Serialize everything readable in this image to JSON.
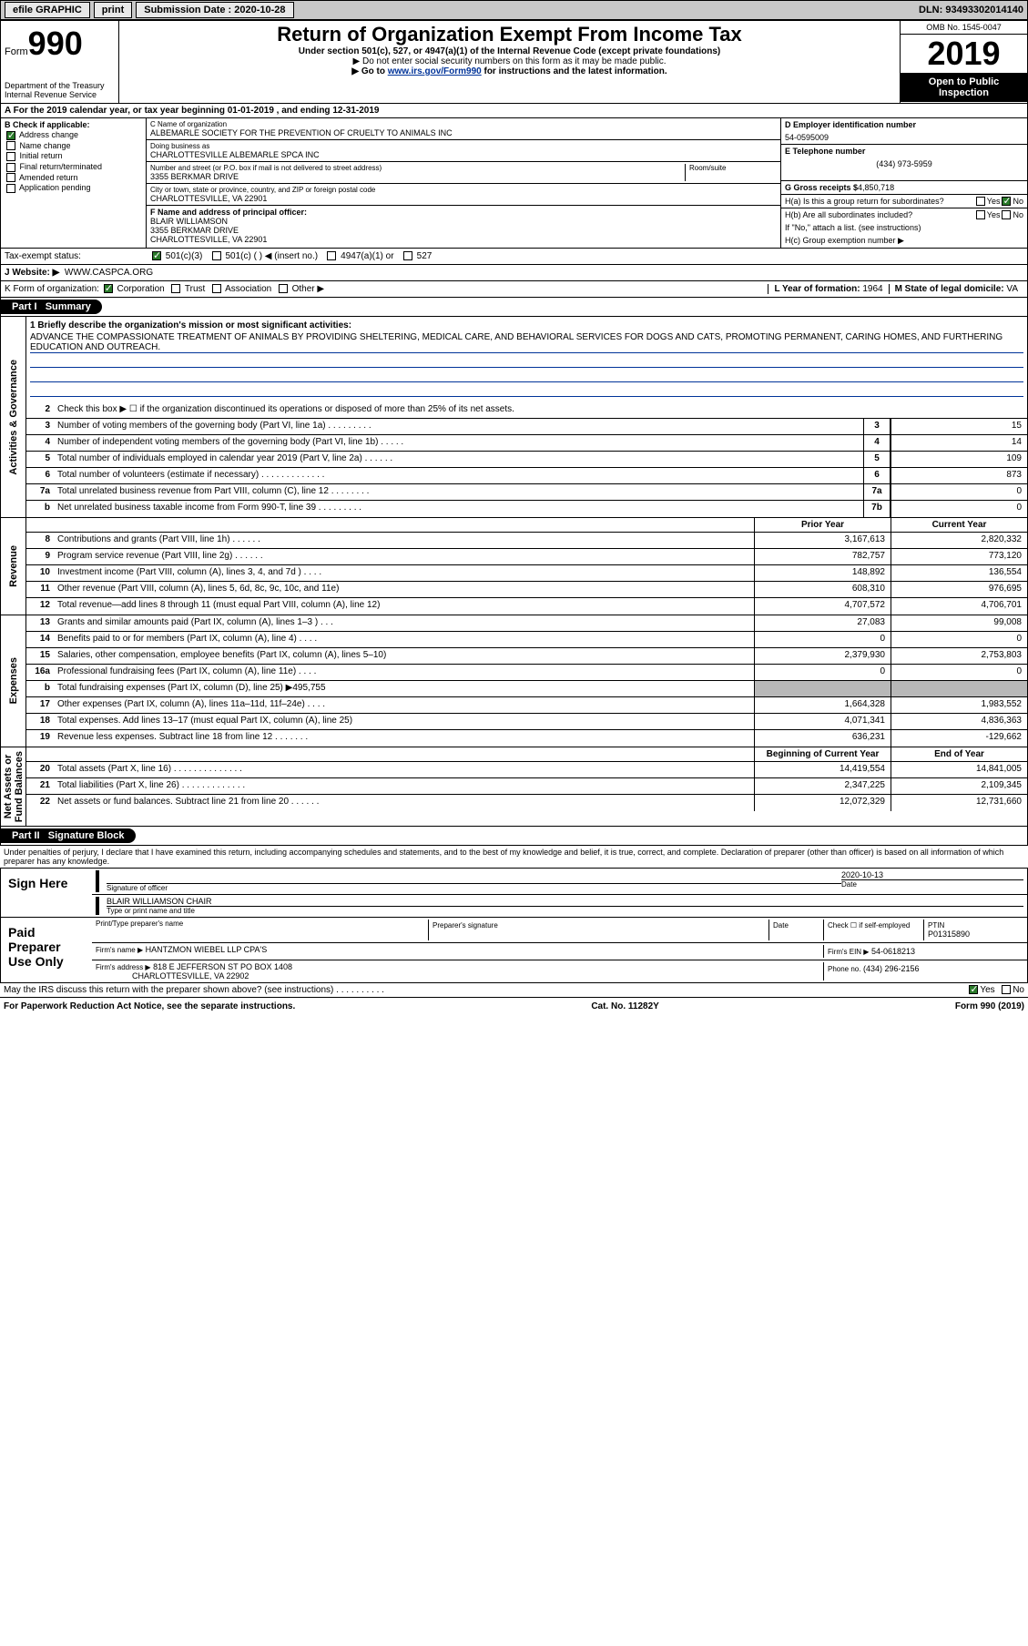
{
  "topbar": {
    "efile": "efile GRAPHIC",
    "print": "print",
    "sub_label": "Submission Date : 2020-10-28",
    "dln": "DLN: 93493302014140"
  },
  "header": {
    "form_word": "Form",
    "form_num": "990",
    "dept": "Department of the Treasury\nInternal Revenue Service",
    "title": "Return of Organization Exempt From Income Tax",
    "sub1": "Under section 501(c), 527, or 4947(a)(1) of the Internal Revenue Code (except private foundations)",
    "sub2": "▶ Do not enter social security numbers on this form as it may be made public.",
    "sub3a": "▶ Go to ",
    "sub3link": "www.irs.gov/Form990",
    "sub3b": " for instructions and the latest information.",
    "omb": "OMB No. 1545-0047",
    "year": "2019",
    "open": "Open to Public Inspection"
  },
  "period": "A For the 2019 calendar year, or tax year beginning 01-01-2019    , and ending 12-31-2019",
  "colB": {
    "label": "B Check if applicable:",
    "items": [
      "Address change",
      "Name change",
      "Initial return",
      "Final return/terminated",
      "Amended return",
      "Application pending"
    ],
    "checked": [
      true,
      false,
      false,
      false,
      false,
      false
    ]
  },
  "colC": {
    "name_label": "C Name of organization",
    "name": "ALBEMARLE SOCIETY FOR THE PREVENTION OF CRUELTY TO ANIMALS INC",
    "dba_label": "Doing business as",
    "dba": "CHARLOTTESVILLE ALBEMARLE SPCA INC",
    "addr_label": "Number and street (or P.O. box if mail is not delivered to street address)",
    "room_label": "Room/suite",
    "addr": "3355 BERKMAR DRIVE",
    "city_label": "City or town, state or province, country, and ZIP or foreign postal code",
    "city": "CHARLOTTESVILLE, VA  22901",
    "officer_label": "F Name and address of principal officer:",
    "officer_name": "BLAIR WILLIAMSON",
    "officer_addr1": "3355 BERKMAR DRIVE",
    "officer_addr2": "CHARLOTTESVILLE, VA  22901"
  },
  "colD": {
    "ein_label": "D Employer identification number",
    "ein": "54-0595009",
    "tel_label": "E Telephone number",
    "tel": "(434) 973-5959",
    "gross_label": "G Gross receipts $",
    "gross": "4,850,718",
    "ha": "H(a)  Is this a group return for subordinates?",
    "hb": "H(b)  Are all subordinates included?",
    "hb_note": "If \"No,\" attach a list. (see instructions)",
    "hc": "H(c)  Group exemption number ▶",
    "yes": "Yes",
    "no": "No"
  },
  "tax_row": {
    "label": "Tax-exempt status:",
    "opts": [
      "501(c)(3)",
      "501(c) (  ) ◀ (insert no.)",
      "4947(a)(1) or",
      "527"
    ],
    "checked": [
      true,
      false,
      false,
      false
    ]
  },
  "web_row": {
    "label": "J   Website: ▶",
    "val": "WWW.CASPCA.ORG"
  },
  "korg_row": {
    "k": "K Form of organization:",
    "opts": [
      "Corporation",
      "Trust",
      "Association",
      "Other ▶"
    ],
    "checked": [
      true,
      false,
      false,
      false
    ],
    "l": "L Year of formation:",
    "l_val": "1964",
    "m": "M State of legal domicile:",
    "m_val": "VA"
  },
  "part1": {
    "label": "Part I",
    "title": "Summary"
  },
  "mission": {
    "q": "1  Briefly describe the organization's mission or most significant activities:",
    "text": "ADVANCE THE COMPASSIONATE TREATMENT OF ANIMALS BY PROVIDING SHELTERING, MEDICAL CARE, AND BEHAVIORAL SERVICES FOR DOGS AND CATS, PROMOTING PERMANENT, CARING HOMES, AND FURTHERING EDUCATION AND OUTREACH."
  },
  "ag_lines": [
    {
      "n": "2",
      "t": "Check this box ▶ ☐  if the organization discontinued its operations or disposed of more than 25% of its net assets.",
      "box": "",
      "v": ""
    },
    {
      "n": "3",
      "t": "Number of voting members of the governing body (Part VI, line 1a)  .   .   .   .   .   .   .   .   .",
      "box": "3",
      "v": "15"
    },
    {
      "n": "4",
      "t": "Number of independent voting members of the governing body (Part VI, line 1b)  .   .   .   .   .",
      "box": "4",
      "v": "14"
    },
    {
      "n": "5",
      "t": "Total number of individuals employed in calendar year 2019 (Part V, line 2a)  .   .   .   .   .   .",
      "box": "5",
      "v": "109"
    },
    {
      "n": "6",
      "t": "Total number of volunteers (estimate if necessary)   .   .   .   .   .   .   .   .   .   .   .   .   .",
      "box": "6",
      "v": "873"
    },
    {
      "n": "7a",
      "t": "Total unrelated business revenue from Part VIII, column (C), line 12  .   .   .   .   .   .   .   .",
      "box": "7a",
      "v": "0"
    },
    {
      "n": "b",
      "t": "Net unrelated business taxable income from Form 990-T, line 39   .   .   .   .   .   .   .   .   .",
      "box": "7b",
      "v": "0"
    }
  ],
  "rev_hdr": {
    "prior": "Prior Year",
    "curr": "Current Year"
  },
  "rev_lines": [
    {
      "n": "8",
      "t": "Contributions and grants (Part VIII, line 1h)  .   .   .   .   .   .",
      "p": "3,167,613",
      "c": "2,820,332"
    },
    {
      "n": "9",
      "t": "Program service revenue (Part VIII, line 2g)  .   .   .   .   .   .",
      "p": "782,757",
      "c": "773,120"
    },
    {
      "n": "10",
      "t": "Investment income (Part VIII, column (A), lines 3, 4, and 7d )   .   .   .   .",
      "p": "148,892",
      "c": "136,554"
    },
    {
      "n": "11",
      "t": "Other revenue (Part VIII, column (A), lines 5, 6d, 8c, 9c, 10c, and 11e)",
      "p": "608,310",
      "c": "976,695"
    },
    {
      "n": "12",
      "t": "Total revenue—add lines 8 through 11 (must equal Part VIII, column (A), line 12)",
      "p": "4,707,572",
      "c": "4,706,701"
    }
  ],
  "exp_lines": [
    {
      "n": "13",
      "t": "Grants and similar amounts paid (Part IX, column (A), lines 1–3 )  .   .   .",
      "p": "27,083",
      "c": "99,008"
    },
    {
      "n": "14",
      "t": "Benefits paid to or for members (Part IX, column (A), line 4)  .   .   .   .",
      "p": "0",
      "c": "0"
    },
    {
      "n": "15",
      "t": "Salaries, other compensation, employee benefits (Part IX, column (A), lines 5–10)",
      "p": "2,379,930",
      "c": "2,753,803"
    },
    {
      "n": "16a",
      "t": "Professional fundraising fees (Part IX, column (A), line 11e)  .   .   .   .",
      "p": "0",
      "c": "0"
    },
    {
      "n": "b",
      "t": "Total fundraising expenses (Part IX, column (D), line 25) ▶495,755",
      "p": "shaded",
      "c": "shaded"
    },
    {
      "n": "17",
      "t": "Other expenses (Part IX, column (A), lines 11a–11d, 11f–24e)  .   .   .   .",
      "p": "1,664,328",
      "c": "1,983,552"
    },
    {
      "n": "18",
      "t": "Total expenses. Add lines 13–17 (must equal Part IX, column (A), line 25)",
      "p": "4,071,341",
      "c": "4,836,363"
    },
    {
      "n": "19",
      "t": "Revenue less expenses. Subtract line 18 from line 12  .   .   .   .   .   .   .",
      "p": "636,231",
      "c": "-129,662"
    }
  ],
  "na_hdr": {
    "beg": "Beginning of Current Year",
    "end": "End of Year"
  },
  "na_lines": [
    {
      "n": "20",
      "t": "Total assets (Part X, line 16)  .   .   .   .   .   .   .   .   .   .   .   .   .   .",
      "p": "14,419,554",
      "c": "14,841,005"
    },
    {
      "n": "21",
      "t": "Total liabilities (Part X, line 26)  .   .   .   .   .   .   .   .   .   .   .   .   .",
      "p": "2,347,225",
      "c": "2,109,345"
    },
    {
      "n": "22",
      "t": "Net assets or fund balances. Subtract line 21 from line 20  .   .   .   .   .   .",
      "p": "12,072,329",
      "c": "12,731,660"
    }
  ],
  "part2": {
    "label": "Part II",
    "title": "Signature Block"
  },
  "decl": "Under penalties of perjury, I declare that I have examined this return, including accompanying schedules and statements, and to the best of my knowledge and belief, it is true, correct, and complete. Declaration of preparer (other than officer) is based on all information of which preparer has any knowledge.",
  "sign": {
    "here": "Sign Here",
    "sig_label": "Signature of officer",
    "date": "2020-10-13",
    "date_label": "Date",
    "name": "BLAIR WILLIAMSON  CHAIR",
    "name_label": "Type or print name and title"
  },
  "paid": {
    "label": "Paid Preparer Use Only",
    "c1": "Print/Type preparer's name",
    "c2": "Preparer's signature",
    "c3": "Date",
    "c4a": "Check ☐ if self-employed",
    "c4b": "PTIN",
    "ptin": "P01315890",
    "firm_label": "Firm's name   ▶",
    "firm": "HANTZMON WIEBEL LLP CPA'S",
    "ein_label": "Firm's EIN ▶",
    "ein": "54-0618213",
    "addr_label": "Firm's address ▶",
    "addr1": "818 E JEFFERSON ST PO BOX 1408",
    "addr2": "CHARLOTTESVILLE, VA  22902",
    "phone_label": "Phone no.",
    "phone": "(434) 296-2156"
  },
  "discuss": {
    "q": "May the IRS discuss this return with the preparer shown above? (see instructions)  .   .   .   .   .   .   .   .   .   .",
    "yes": "Yes",
    "no": "No"
  },
  "footer": {
    "left": "For Paperwork Reduction Act Notice, see the separate instructions.",
    "mid": "Cat. No. 11282Y",
    "right": "Form 990 (2019)"
  },
  "vert": {
    "ag": "Activities & Governance",
    "rev": "Revenue",
    "exp": "Expenses",
    "na": "Net Assets or\nFund Balances"
  }
}
